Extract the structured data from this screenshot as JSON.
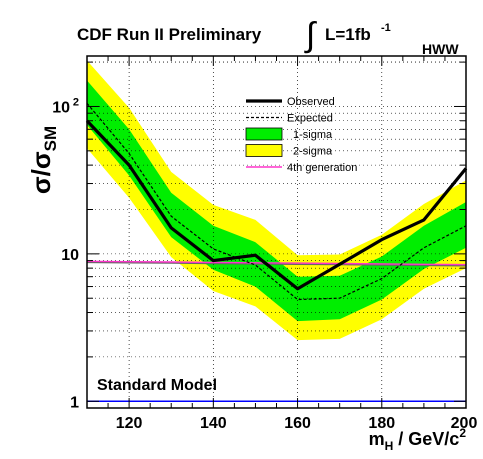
{
  "chart_data": {
    "type": "line",
    "title": "CDF Run II Preliminary",
    "lumi": {
      "integral": "∫",
      "label": "L=1fb",
      "exponent": "-1"
    },
    "channel": "HWW",
    "xlabel": {
      "main": "m",
      "sub": "H",
      "rest": " / GeV/c",
      "sup": "2"
    },
    "ylabel": {
      "main": "σ/σ",
      "sub": "SM"
    },
    "xlim": [
      110,
      200
    ],
    "ylim": [
      0.9,
      220
    ],
    "yscale": "log",
    "grid": true,
    "xticks": [
      120,
      140,
      160,
      180,
      200
    ],
    "yticks": [
      {
        "value": 1,
        "label": "1"
      },
      {
        "value": 10,
        "label": "10"
      },
      {
        "value": 100,
        "label": "10",
        "sup": "2"
      }
    ],
    "x": [
      110,
      120,
      130,
      140,
      150,
      160,
      170,
      180,
      190,
      200
    ],
    "series": [
      {
        "name": "Observed",
        "style": "solid-thick",
        "color": "#000000",
        "values": [
          80,
          40,
          15,
          9,
          9.8,
          5.8,
          8.5,
          12.5,
          17,
          38
        ]
      },
      {
        "name": "Expected",
        "style": "dashed",
        "color": "#000000",
        "values": [
          105,
          48,
          18,
          10.8,
          8.4,
          4.9,
          5.0,
          6.8,
          11,
          15.5
        ]
      },
      {
        "name": "1-sigma",
        "style": "band",
        "color": "#00ee00",
        "lower": [
          75,
          34,
          13,
          7.8,
          6.0,
          3.5,
          3.6,
          4.9,
          7.9,
          11.0
        ],
        "upper": [
          150,
          70,
          26,
          15.5,
          12.0,
          7.0,
          7.1,
          9.6,
          15.5,
          22.5
        ]
      },
      {
        "name": "2-sigma",
        "style": "band",
        "color": "#ffff00",
        "lower": [
          52,
          24,
          9.5,
          5.6,
          4.4,
          2.6,
          2.65,
          3.6,
          5.8,
          8.0
        ],
        "upper": [
          205,
          98,
          36,
          21.5,
          17.0,
          9.8,
          9.9,
          13.5,
          21.8,
          31.5
        ]
      },
      {
        "name": "4th generation",
        "style": "thin",
        "color": "#ff33cc",
        "values": [
          8.9,
          8.85,
          8.8,
          8.75,
          8.7,
          8.65,
          8.6,
          8.55,
          8.5,
          8.45
        ]
      }
    ],
    "extra_lines": [
      {
        "style": "thin",
        "color": "#666666",
        "values": [
          8.75,
          8.7,
          8.65,
          8.6,
          8.55,
          8.5,
          8.45,
          8.4,
          8.35,
          8.3
        ]
      }
    ],
    "reference_line": {
      "label": "Standard Model",
      "value": 1,
      "color": "#0000ff"
    },
    "legend_position": "top-right",
    "legend_order": [
      "Observed",
      "Expected",
      "1-sigma",
      "2-sigma",
      "4th generation"
    ]
  }
}
